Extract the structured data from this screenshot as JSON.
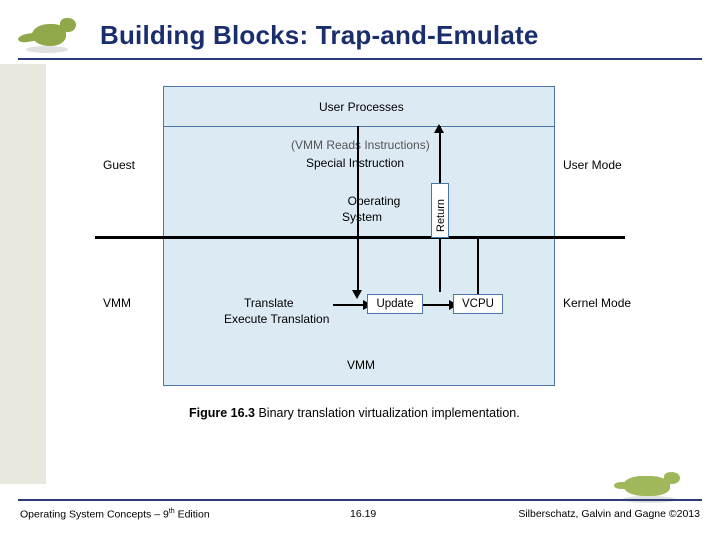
{
  "title": "Building Blocks: Trap-and-Emulate",
  "diagram": {
    "type": "flowchart",
    "box_border_color": "#4a77a8",
    "box_fill_color": "#dceaf3",
    "node_fill_color": "#ffffff",
    "line_color": "#000000",
    "labels": {
      "user_processes": "User Processes",
      "vmm_reads": "(VMM Reads Instructions)",
      "special_instruction": "Special Instruction",
      "guest": "Guest",
      "user_mode": "User Mode",
      "operating": "Operating",
      "system": "System",
      "return": "Return",
      "vmm_left": "VMM",
      "kernel_mode": "Kernel Mode",
      "translate": "Translate",
      "execute_translation": "Execute Translation",
      "update": "Update",
      "vcpu": "VCPU",
      "vmm_bottom": "VMM"
    },
    "caption_bold": "Figure 16.3",
    "caption_rest": "   Binary translation virtualization implementation."
  },
  "footer": {
    "left_a": "Operating System Concepts – 9",
    "left_sup": "th",
    "left_b": " Edition",
    "mid": "16.19",
    "right": "Silberschatz, Galvin and Gagne ©2013"
  },
  "colors": {
    "title_color": "#1a2e6e",
    "underline_color": "#2a3a7a",
    "left_rail": "#e8e8df",
    "dino_top": "#8fa84a",
    "dino_bottom": "#9fb85a"
  }
}
